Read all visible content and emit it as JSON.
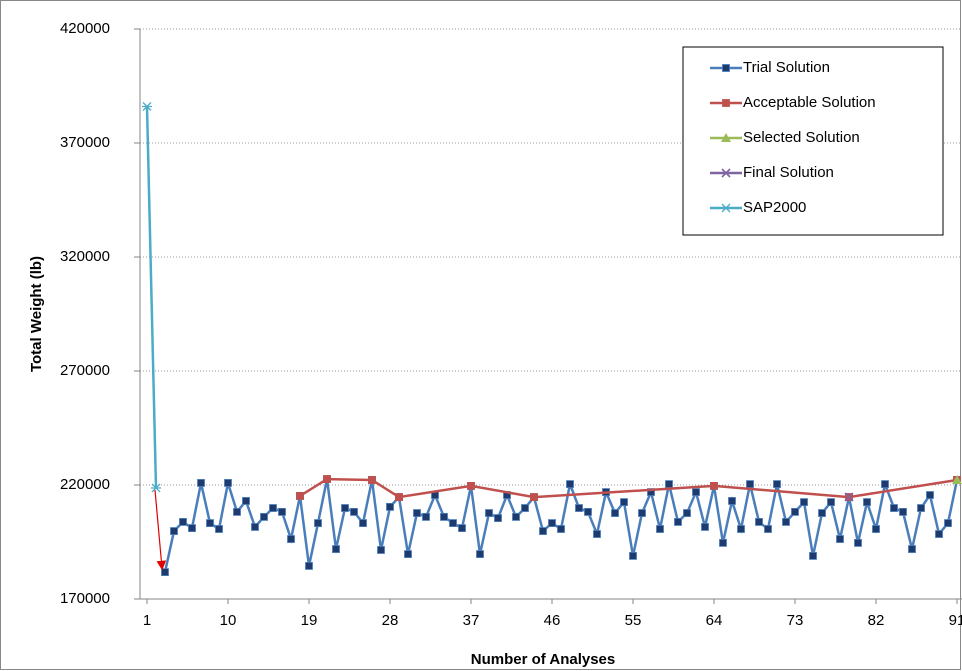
{
  "chart_data": {
    "type": "line",
    "xlabel": "Number of Analyses",
    "ylabel": "Total Weight (lb)",
    "xlim": [
      1,
      91
    ],
    "xticks": [
      1,
      10,
      19,
      28,
      37,
      46,
      55,
      64,
      73,
      82,
      91
    ],
    "ylim": [
      170000,
      420000
    ],
    "yticks": [
      170000,
      220000,
      270000,
      320000,
      370000,
      420000
    ],
    "grid": true,
    "legend": "upper right",
    "series": [
      {
        "name": "Trial Solution",
        "color": "#4a7ebb",
        "marker": "square",
        "x": [
          3,
          4,
          5,
          6,
          7,
          8,
          9,
          10,
          11,
          12,
          13,
          14,
          15,
          16,
          17,
          18,
          19,
          20,
          21,
          22,
          23,
          24,
          25,
          26,
          27,
          28,
          29,
          30,
          31,
          32,
          33,
          34,
          35,
          36,
          37,
          38,
          39,
          40,
          41,
          42,
          43,
          44,
          45,
          46,
          47,
          48,
          49,
          50,
          51,
          52,
          53,
          54,
          55,
          56,
          57,
          58,
          59,
          60,
          61,
          62,
          63,
          64,
          65,
          66,
          67,
          68,
          69,
          70,
          71,
          72,
          73,
          74,
          75,
          76,
          77,
          78,
          79,
          80,
          81,
          82,
          83,
          84,
          85,
          86,
          87,
          88,
          89,
          90,
          91
        ],
        "values": [
          181800,
          199800,
          203800,
          201100,
          220900,
          203300,
          200700,
          220900,
          208200,
          213000,
          201600,
          206000,
          209900,
          208200,
          196300,
          215200,
          184500,
          203300,
          222600,
          191900,
          209900,
          208200,
          203300,
          222200,
          191500,
          210400,
          214700,
          189700,
          207700,
          206000,
          215600,
          206000,
          203300,
          201100,
          219600,
          189700,
          207700,
          205500,
          215600,
          206000,
          209900,
          214700,
          199800,
          203300,
          200700,
          220400,
          209900,
          208200,
          198500,
          216900,
          207700,
          212500,
          188900,
          207700,
          216900,
          200700,
          220400,
          203800,
          207700,
          216900,
          201600,
          219600,
          194600,
          213000,
          200700,
          220400,
          203800,
          200700,
          220400,
          203800,
          208200,
          212500,
          188900,
          207700,
          212500,
          196300,
          214700,
          194600,
          212500,
          200700,
          220400,
          209900,
          208200,
          191900,
          209900,
          215600,
          198500,
          203300,
          222200
        ]
      },
      {
        "name": "Acceptable Solution",
        "color": "#c0504d",
        "marker": "square",
        "x": [
          18,
          21,
          26,
          29,
          37,
          44,
          64,
          79,
          91
        ],
        "values": [
          215200,
          222600,
          222200,
          214700,
          219600,
          214700,
          219600,
          214700,
          222200
        ]
      },
      {
        "name": "Selected Solution",
        "color": "#9bbb59",
        "marker": "triangle",
        "x": [
          91
        ],
        "values": [
          222200
        ]
      },
      {
        "name": "Final Solution",
        "color": "#8064a2",
        "marker": "x",
        "x": [
          79
        ],
        "values": [
          214700
        ]
      },
      {
        "name": "SAP2000",
        "color": "#4bacc6",
        "marker": "star",
        "x": [
          1,
          2
        ],
        "values": [
          386000,
          218700
        ]
      }
    ]
  }
}
